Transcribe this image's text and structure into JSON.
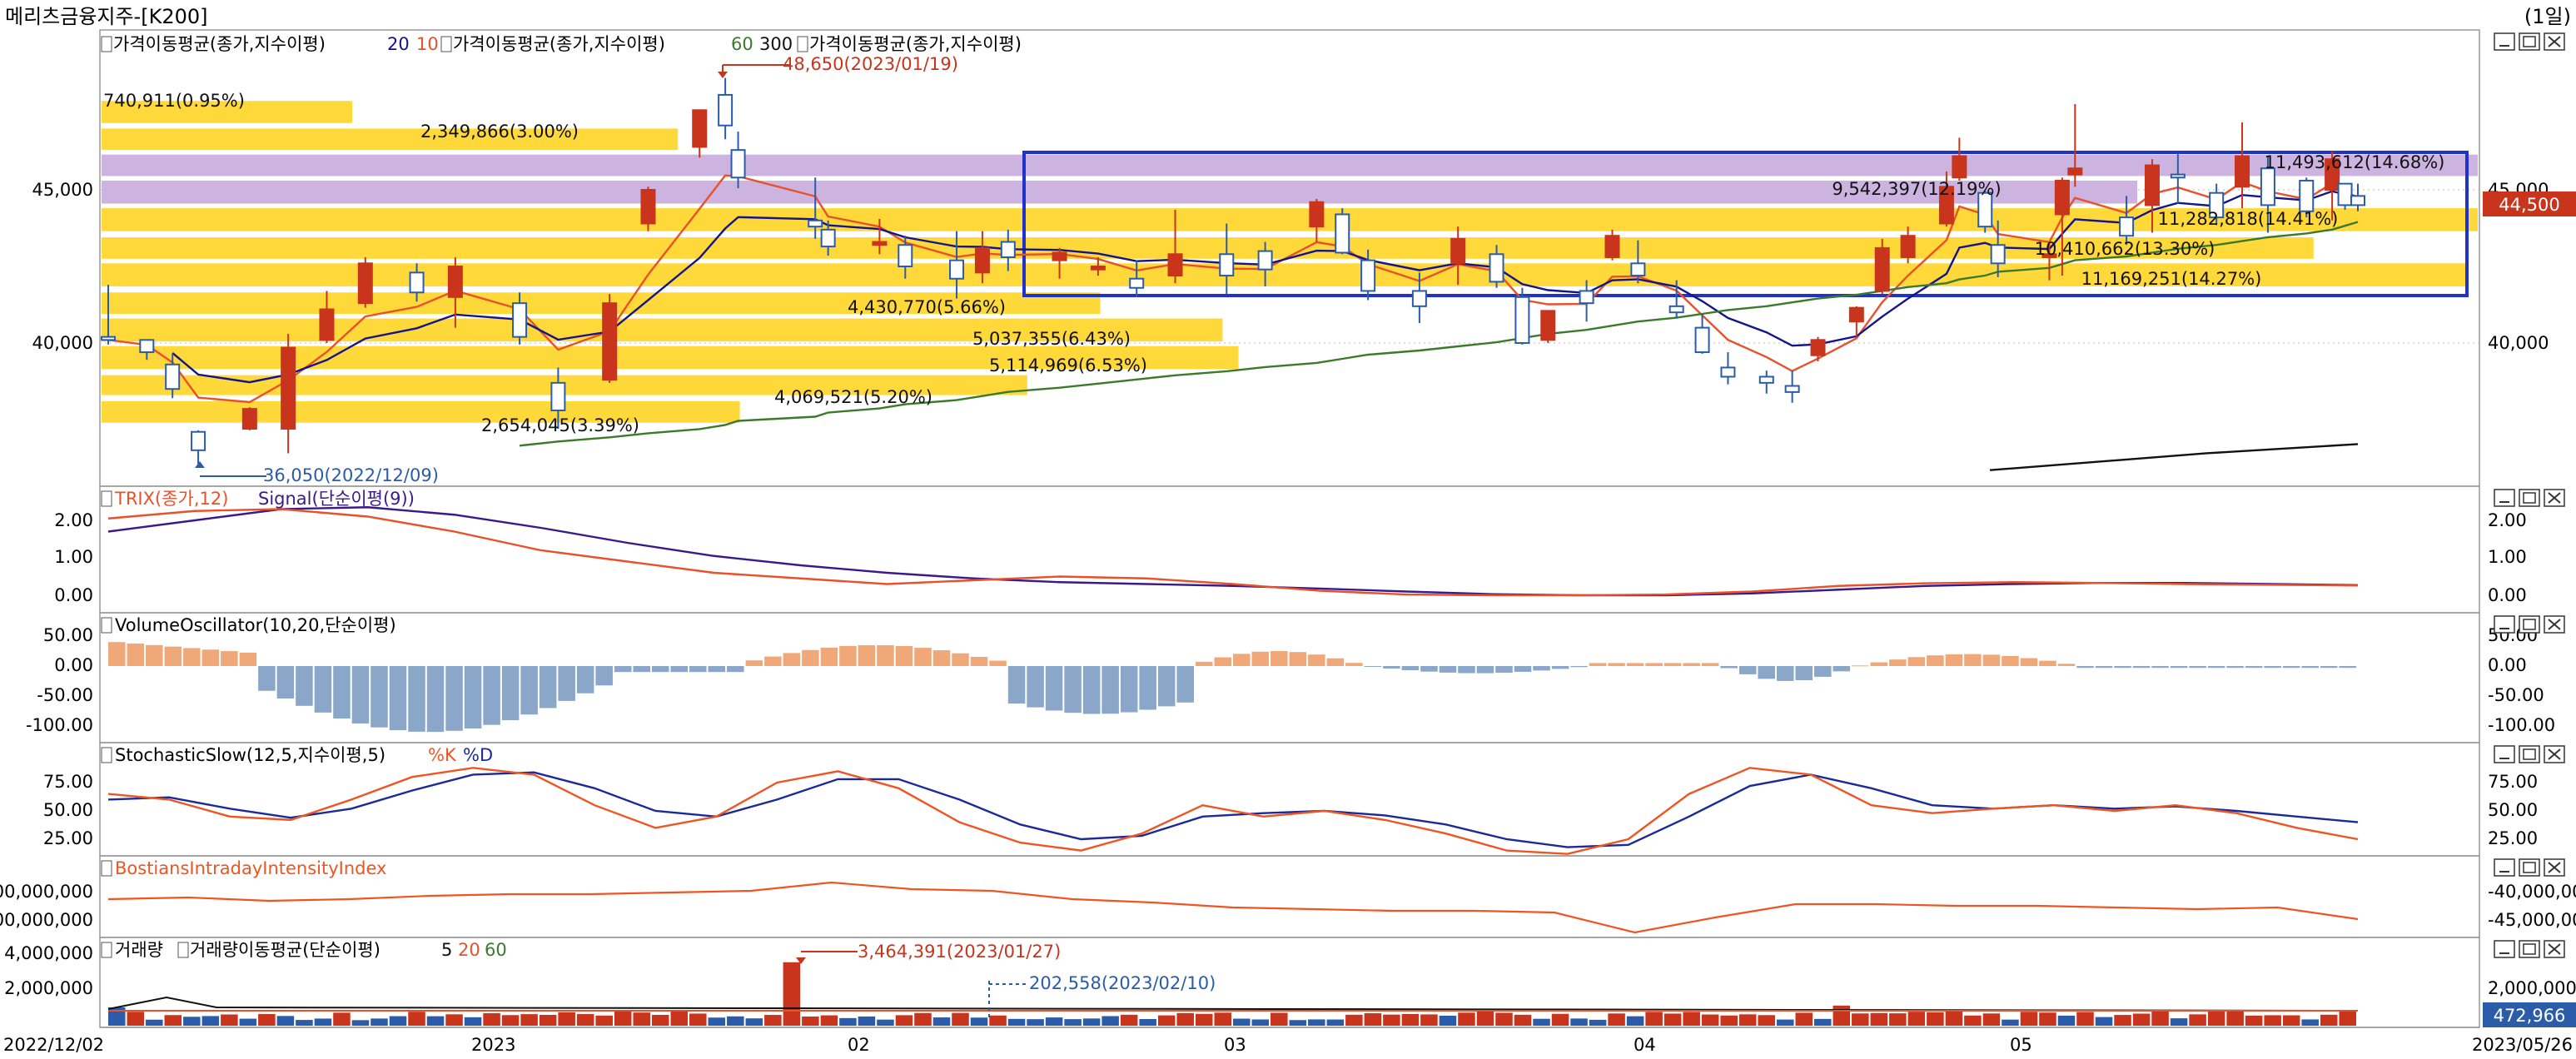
{
  "window": {
    "title": "메리츠금융지주-[K200]",
    "period": "(1일)"
  },
  "colors": {
    "up": "#c8341c",
    "down": "#2a5caa",
    "volume_profile": "#ffd83a",
    "volume_profile_poc": "#cdb4e0",
    "box": "#1f33cc",
    "ma_short": "#e8512a",
    "ma_mid": "#14148c",
    "ma_long": "#3a7a2a",
    "ma_longest": "#111111",
    "signal": "#3a1a8a",
    "osc_up": "#f0a878",
    "osc_down": "#8aa6c8",
    "stoch_k": "#ee5522",
    "stoch_d": "#1a2a99",
    "bii": "#ee5522"
  },
  "x_axis": {
    "labels": [
      "2022/12/02",
      "2023",
      "02",
      "03",
      "04",
      "05",
      "2023/05/26"
    ]
  },
  "panes": {
    "price": {
      "legend": [
        {
          "text": "가격이동평균(종가,지수이평)",
          "params": [
            "20",
            "10"
          ]
        },
        {
          "text": "가격이동평균(종가,지수이평)",
          "params": [
            "60",
            "300"
          ]
        },
        {
          "text": "가격이동평균(종가,지수이평)",
          "params": []
        }
      ],
      "y_ticks": [
        "45,000",
        "40,000"
      ],
      "last_price": "44,500",
      "annotations": {
        "high": "48,650(2023/01/19)",
        "low": "36,050(2022/12/09)"
      },
      "volume_profile_labels": [
        "740,911(0.95%)",
        "2,349,866(3.00%)",
        "9,542,397(12.19%)",
        "11,493,612(14.68%)",
        "11,282,818(14.41%)",
        "10,410,662(13.30%)",
        "4,430,770(5.66%)",
        "11,169,251(14.27%)",
        "5,037,355(6.43%)",
        "5,114,969(6.53%)",
        "4,069,521(5.20%)",
        "2,654,045(3.39%)"
      ]
    },
    "trix": {
      "legend": [
        "TRIX(종가,12)",
        "Signal(단순이평(9))"
      ],
      "y_ticks": [
        "2.00",
        "1.00",
        "0.00"
      ]
    },
    "vosc": {
      "legend": "VolumeOscillator(10,20,단순이평)",
      "y_ticks": [
        "50.00",
        "0.00",
        "-50.00",
        "-100.00"
      ]
    },
    "stoch": {
      "legend": "StochasticSlow(12,5,지수이평,5)",
      "k_label": "%K",
      "d_label": "%D",
      "y_ticks": [
        "75.00",
        "50.00",
        "25.00"
      ]
    },
    "bii": {
      "legend": "BostiansIntradayIntensityIndex",
      "y_ticks_left": [
        "00,000,000",
        "00,000,000"
      ],
      "y_ticks_right": [
        "-40,000,000",
        "-45,000,000"
      ]
    },
    "volume": {
      "legend": "거래량",
      "legend2": "거래량이동평균(단순이평)",
      "ma_params": [
        "5",
        "20",
        "60"
      ],
      "y_ticks": [
        "4,000,000",
        "2,000,000"
      ],
      "last_volume": "472,966",
      "annotations": {
        "high": "3,464,391(2023/01/27)",
        "low": "202,558(2023/02/10)"
      }
    }
  },
  "chart_data": {
    "type": "candlestick",
    "title": "메리츠금융지주-[K200]",
    "period": "1일",
    "date_range": [
      "2022/12/02",
      "2023/05/26"
    ],
    "y_range_approx": [
      35500,
      48800
    ],
    "ohlc_approx": [
      [
        "2022/12/02",
        40200,
        41900,
        39950,
        40100
      ],
      [
        "2022/12/05",
        40100,
        40100,
        39450,
        39700
      ],
      [
        "2022/12/07",
        39300,
        39650,
        38200,
        38500
      ],
      [
        "2022/12/09",
        37100,
        37150,
        36050,
        36500
      ],
      [
        "2022/12/13",
        37200,
        37900,
        37150,
        37850
      ],
      [
        "2022/12/16",
        37200,
        40300,
        36400,
        39850
      ],
      [
        "2022/12/19",
        40100,
        41700,
        40000,
        41100
      ],
      [
        "2022/12/22",
        41300,
        42800,
        41150,
        42600
      ],
      [
        "2022/12/26",
        42300,
        42600,
        41350,
        41650
      ],
      [
        "2022/12/29",
        41500,
        42800,
        40500,
        42500
      ],
      [
        "2023/01/03",
        41300,
        41650,
        39950,
        40200
      ],
      [
        "2023/01/06",
        38700,
        39200,
        37200,
        37800
      ],
      [
        "2023/01/10",
        38800,
        41600,
        38700,
        41300
      ],
      [
        "2023/01/13",
        43900,
        45100,
        43650,
        45000
      ],
      [
        "2023/01/17",
        46400,
        47600,
        46050,
        47600
      ],
      [
        "2023/01/19",
        48100,
        48650,
        46650,
        47100
      ],
      [
        "2023/01/20",
        46300,
        46900,
        45050,
        45400
      ],
      [
        "2023/01/26",
        44000,
        45400,
        43400,
        43800
      ],
      [
        "2023/01/27",
        43700,
        44000,
        42850,
        43150
      ],
      [
        "2023/01/31",
        43200,
        44050,
        42900,
        43300
      ],
      [
        "2023/02/02",
        43200,
        43500,
        42100,
        42500
      ],
      [
        "2023/02/06",
        42700,
        43650,
        41450,
        42100
      ],
      [
        "2023/02/08",
        42300,
        43650,
        41950,
        43100
      ],
      [
        "2023/02/10",
        43300,
        43700,
        42350,
        42800
      ],
      [
        "2023/02/14",
        42700,
        43100,
        42100,
        42950
      ],
      [
        "2023/02/17",
        42400,
        42800,
        42200,
        42500
      ],
      [
        "2023/02/20",
        42100,
        42700,
        41500,
        41800
      ],
      [
        "2023/02/23",
        42200,
        44350,
        41950,
        42900
      ],
      [
        "2023/02/27",
        42900,
        43900,
        41600,
        42200
      ],
      [
        "2023/03/02",
        43000,
        43300,
        41850,
        42400
      ],
      [
        "2023/03/06",
        43800,
        44700,
        43300,
        44600
      ],
      [
        "2023/03/08",
        44200,
        44400,
        42900,
        42950
      ],
      [
        "2023/03/10",
        42700,
        43050,
        41400,
        41700
      ],
      [
        "2023/03/14",
        41700,
        42300,
        40650,
        41200
      ],
      [
        "2023/03/17",
        42600,
        43800,
        41900,
        43400
      ],
      [
        "2023/03/20",
        42900,
        43200,
        41800,
        42000
      ],
      [
        "2023/03/22",
        41500,
        41800,
        39950,
        40000
      ],
      [
        "2023/03/24",
        40100,
        41050,
        40000,
        41050
      ],
      [
        "2023/03/27",
        41700,
        42050,
        40700,
        41300
      ],
      [
        "2023/03/29",
        42800,
        43700,
        42700,
        43500
      ],
      [
        "2023/03/31",
        42600,
        43350,
        41950,
        42200
      ],
      [
        "2023/04/03",
        41200,
        42050,
        40800,
        41000
      ],
      [
        "2023/04/05",
        40500,
        40950,
        39650,
        39700
      ],
      [
        "2023/04/07",
        39200,
        39700,
        38650,
        38900
      ],
      [
        "2023/04/10",
        38900,
        39100,
        38350,
        38700
      ],
      [
        "2023/04/12",
        38600,
        39100,
        38050,
        38400
      ],
      [
        "2023/04/14",
        39600,
        40200,
        39400,
        40100
      ],
      [
        "2023/04/17",
        40700,
        41200,
        40200,
        41150
      ],
      [
        "2023/04/19",
        41700,
        43400,
        41600,
        43100
      ],
      [
        "2023/04/21",
        42800,
        43800,
        42600,
        43500
      ],
      [
        "2023/04/24",
        43900,
        45600,
        43800,
        45100
      ],
      [
        "2023/04/25",
        45400,
        46700,
        45300,
        46100
      ],
      [
        "2023/04/27",
        44900,
        45000,
        43600,
        43800
      ],
      [
        "2023/04/28",
        43200,
        44000,
        42150,
        42600
      ],
      [
        "2023/05/02",
        42800,
        43250,
        42050,
        42900
      ],
      [
        "2023/05/03",
        44200,
        45400,
        42200,
        45300
      ],
      [
        "2023/05/04",
        45500,
        47800,
        45100,
        45700
      ],
      [
        "2023/05/08",
        44100,
        44800,
        43200,
        43500
      ],
      [
        "2023/05/10",
        44500,
        46000,
        43600,
        45800
      ],
      [
        "2023/05/12",
        45500,
        46200,
        44550,
        45400
      ],
      [
        "2023/05/15",
        44900,
        45200,
        43850,
        44100
      ],
      [
        "2023/05/17",
        45100,
        47200,
        44400,
        46100
      ],
      [
        "2023/05/19",
        45700,
        46100,
        43600,
        44500
      ],
      [
        "2023/05/22",
        45300,
        45400,
        44100,
        44300
      ],
      [
        "2023/05/24",
        45000,
        46250,
        44000,
        46000
      ],
      [
        "2023/05/25",
        45200,
        45200,
        44350,
        44500
      ],
      [
        "2023/05/26",
        44800,
        45200,
        44300,
        44500
      ]
    ],
    "volume_profile": [
      {
        "price_range": [
          47180,
          47900
        ],
        "volume": 740911,
        "percent": 0.95
      },
      {
        "price_range": [
          46300,
          47000
        ],
        "volume": 2349866,
        "percent": 3.0
      },
      {
        "price_range": [
          45450,
          46150
        ],
        "volume": 11493612,
        "percent": 14.68
      },
      {
        "price_range": [
          44550,
          45300
        ],
        "volume": 9542397,
        "percent": 12.19
      },
      {
        "price_range": [
          43650,
          44400
        ],
        "volume": 11282818,
        "percent": 14.41
      },
      {
        "price_range": [
          42750,
          43450
        ],
        "volume": 10410662,
        "percent": 13.3
      },
      {
        "price_range": [
          41850,
          42600
        ],
        "volume": 11169251,
        "percent": 14.27
      },
      {
        "price_range": [
          40950,
          41650
        ],
        "volume": 4430770,
        "percent": 5.66
      },
      {
        "price_range": [
          40050,
          40800
        ],
        "volume": 5037355,
        "percent": 6.43
      },
      {
        "price_range": [
          39150,
          39900
        ],
        "volume": 5114969,
        "percent": 6.53
      },
      {
        "price_range": [
          38300,
          38950
        ],
        "volume": 4069521,
        "percent": 5.2
      },
      {
        "price_range": [
          37400,
          38100
        ],
        "volume": 2654045,
        "percent": 3.39
      }
    ],
    "box_price_range": [
      41600,
      46300
    ],
    "box_date_range": [
      "2023/02/23",
      "2023/05/26"
    ],
    "trix": {
      "trix_range": [
        0.0,
        2.3
      ],
      "signal_range": [
        0.0,
        2.4
      ]
    },
    "volume_oscillator_range": [
      -110,
      60
    ],
    "stochastic": {
      "k_range": [
        10,
        88
      ],
      "d_range": [
        15,
        85
      ]
    },
    "volume": {
      "max": 3464391,
      "max_date": "2023/01/27",
      "min": 202558,
      "min_date": "2023/02/10",
      "last": 472966
    }
  }
}
